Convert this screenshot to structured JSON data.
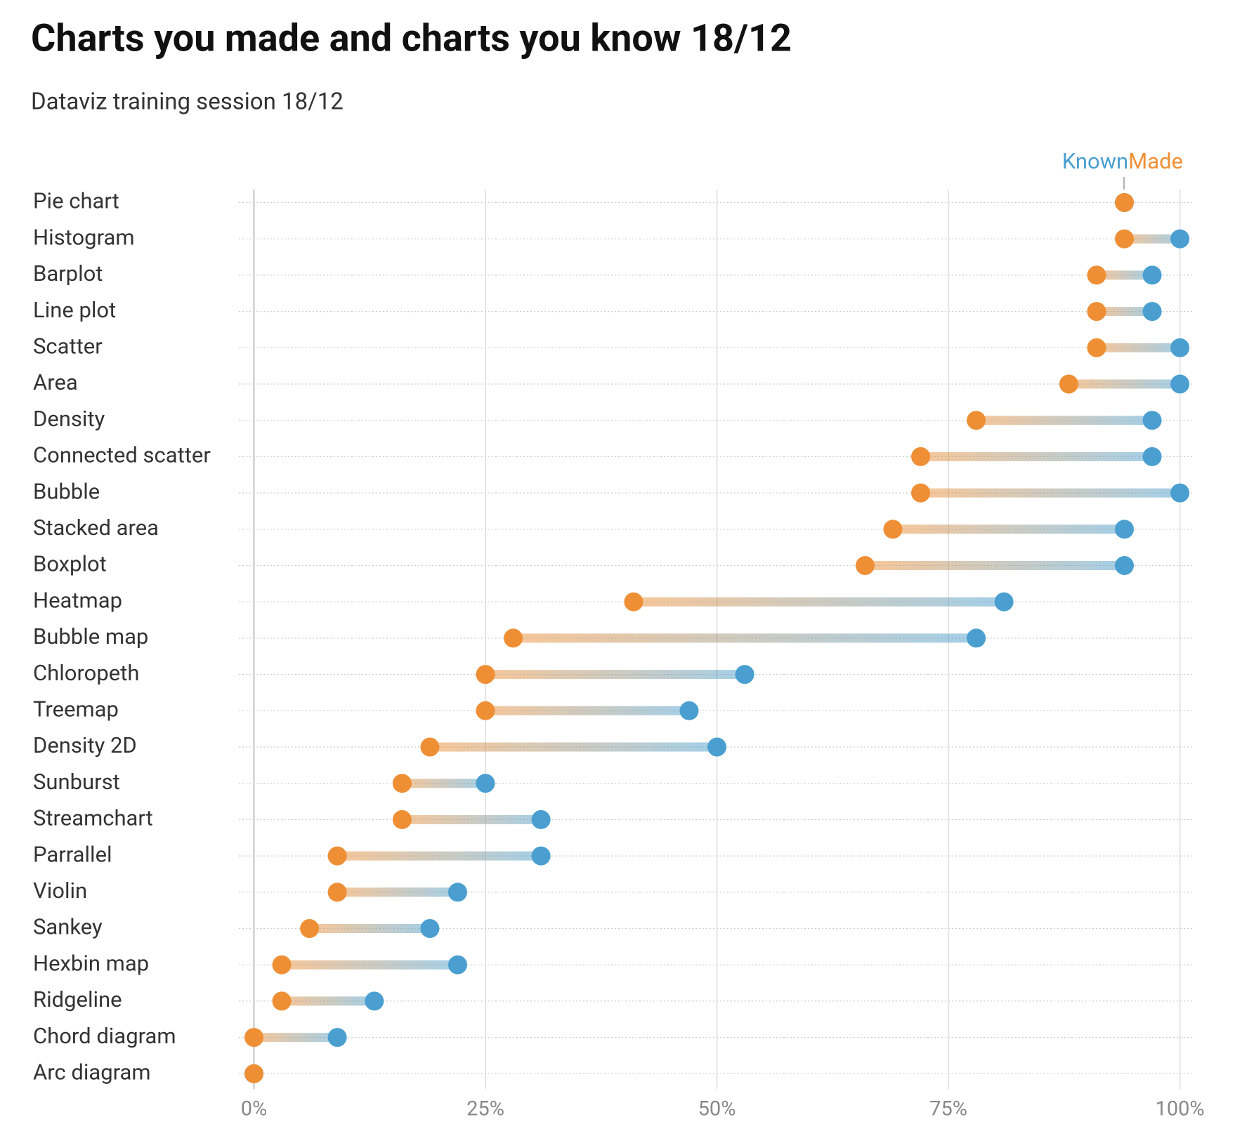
{
  "chart_data": {
    "type": "dumbbell",
    "title": "Charts you made and charts you know 18/12",
    "subtitle": "Dataviz training session 18/12",
    "categories": [
      "Pie chart",
      "Histogram",
      "Barplot",
      "Line plot",
      "Scatter",
      "Area",
      "Density",
      "Connected scatter",
      "Bubble",
      "Stacked area",
      "Boxplot",
      "Heatmap",
      "Bubble map",
      "Chloropeth",
      "Treemap",
      "Density 2D",
      "Sunburst",
      "Streamchart",
      "Parrallel",
      "Violin",
      "Sankey",
      "Hexbin map",
      "Ridgeline",
      "Chord diagram",
      "Arc diagram"
    ],
    "series": [
      {
        "name": "Known",
        "color": "#4a9fd0",
        "values": [
          94,
          100,
          97,
          97,
          100,
          100,
          97,
          97,
          100,
          94,
          94,
          81,
          78,
          53,
          47,
          50,
          25,
          31,
          31,
          22,
          19,
          22,
          13,
          9,
          0
        ]
      },
      {
        "name": "Made",
        "color": "#ee8f35",
        "values": [
          94,
          94,
          91,
          91,
          91,
          88,
          78,
          72,
          72,
          69,
          66,
          41,
          28,
          25,
          25,
          19,
          16,
          16,
          9,
          9,
          6,
          3,
          3,
          0,
          0
        ]
      }
    ],
    "xlim": [
      0,
      100
    ],
    "xticks": [
      {
        "value": 0,
        "label": "0%"
      },
      {
        "value": 25,
        "label": "25%"
      },
      {
        "value": 50,
        "label": "50%"
      },
      {
        "value": 75,
        "label": "75%"
      },
      {
        "value": 100,
        "label": "100%"
      }
    ],
    "grid": true
  }
}
